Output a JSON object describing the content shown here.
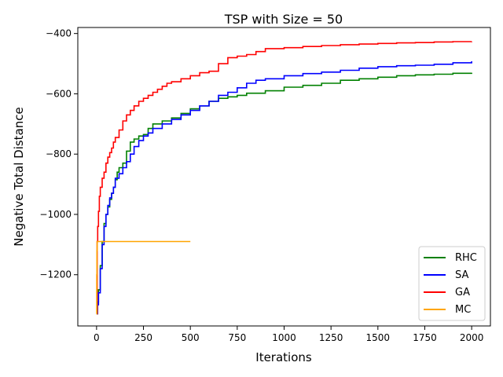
{
  "chart_data": {
    "type": "line",
    "title": "TSP with Size = 50",
    "xlabel": "Iterations",
    "ylabel": "Negative Total Distance",
    "xlim": [
      -100,
      2100
    ],
    "ylim": [
      -1370,
      -380
    ],
    "xticks": [
      0,
      250,
      500,
      750,
      1000,
      1250,
      1500,
      1750,
      2000
    ],
    "xtick_labels": [
      "0",
      "250",
      "500",
      "750",
      "1000",
      "1250",
      "1500",
      "1750",
      "2000"
    ],
    "yticks": [
      -1200,
      -1000,
      -800,
      -600,
      -400
    ],
    "ytick_labels": [
      "−1200",
      "−1000",
      "−800",
      "−600",
      "−400"
    ],
    "grid": false,
    "legend_position": "lower-right",
    "series": [
      {
        "name": "RHC",
        "color": "#008000",
        "x": [
          0,
          5,
          10,
          20,
          30,
          40,
          50,
          60,
          70,
          80,
          90,
          100,
          110,
          120,
          140,
          160,
          180,
          200,
          225,
          250,
          275,
          300,
          350,
          400,
          450,
          500,
          550,
          600,
          650,
          700,
          750,
          800,
          900,
          1000,
          1100,
          1200,
          1300,
          1400,
          1500,
          1600,
          1700,
          1800,
          1900,
          2000
        ],
        "y": [
          -1330,
          -1290,
          -1250,
          -1170,
          -1090,
          -1030,
          -1000,
          -975,
          -950,
          -930,
          -910,
          -885,
          -860,
          -845,
          -830,
          -790,
          -760,
          -750,
          -740,
          -735,
          -715,
          -700,
          -690,
          -680,
          -665,
          -650,
          -640,
          -625,
          -615,
          -610,
          -605,
          -598,
          -590,
          -578,
          -572,
          -565,
          -555,
          -550,
          -545,
          -540,
          -537,
          -535,
          -532,
          -530
        ]
      },
      {
        "name": "SA",
        "color": "#0000ff",
        "x": [
          0,
          5,
          10,
          20,
          30,
          40,
          50,
          60,
          70,
          80,
          90,
          100,
          120,
          140,
          160,
          180,
          200,
          225,
          250,
          275,
          300,
          350,
          400,
          450,
          500,
          550,
          600,
          650,
          700,
          750,
          800,
          850,
          900,
          1000,
          1100,
          1200,
          1300,
          1400,
          1500,
          1600,
          1700,
          1800,
          1900,
          2000
        ],
        "y": [
          -1330,
          -1300,
          -1260,
          -1180,
          -1100,
          -1040,
          -1000,
          -970,
          -945,
          -930,
          -910,
          -880,
          -865,
          -845,
          -825,
          -800,
          -775,
          -755,
          -740,
          -730,
          -715,
          -700,
          -685,
          -670,
          -655,
          -640,
          -625,
          -605,
          -595,
          -580,
          -565,
          -555,
          -550,
          -540,
          -533,
          -528,
          -522,
          -515,
          -510,
          -507,
          -505,
          -502,
          -497,
          -492
        ]
      },
      {
        "name": "GA",
        "color": "#ff0000",
        "x": [
          0,
          3,
          6,
          10,
          15,
          20,
          30,
          40,
          50,
          60,
          70,
          80,
          90,
          100,
          120,
          140,
          160,
          180,
          200,
          225,
          250,
          275,
          300,
          325,
          350,
          375,
          400,
          450,
          500,
          550,
          600,
          650,
          700,
          750,
          800,
          850,
          900,
          1000,
          1100,
          1200,
          1300,
          1400,
          1500,
          1600,
          1700,
          1800,
          1900,
          2000
        ],
        "y": [
          -1330,
          -1090,
          -1040,
          -990,
          -940,
          -910,
          -880,
          -860,
          -830,
          -810,
          -795,
          -780,
          -760,
          -745,
          -720,
          -690,
          -670,
          -655,
          -640,
          -625,
          -615,
          -605,
          -595,
          -585,
          -575,
          -565,
          -560,
          -550,
          -540,
          -530,
          -525,
          -500,
          -480,
          -475,
          -470,
          -460,
          -450,
          -447,
          -443,
          -440,
          -437,
          -435,
          -433,
          -431,
          -430,
          -428,
          -427,
          -426
        ]
      },
      {
        "name": "MC",
        "color": "#ffa500",
        "x": [
          0,
          1,
          2,
          3,
          500
        ],
        "y": [
          -1330,
          -1200,
          -1120,
          -1090,
          -1090
        ]
      }
    ]
  }
}
